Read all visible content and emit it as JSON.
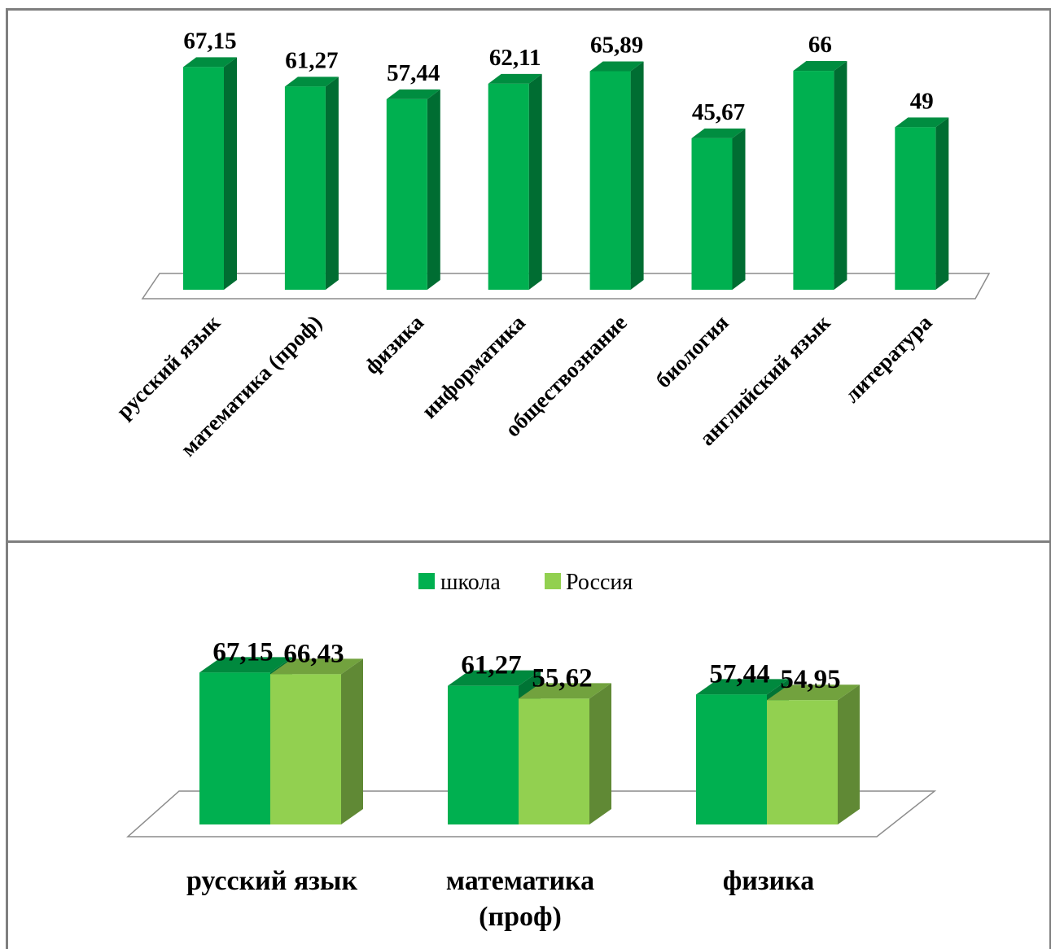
{
  "chart_data": [
    {
      "type": "bar",
      "title": "",
      "categories": [
        "русский язык",
        "математика (проф)",
        "физика",
        "информатика",
        "обществознание",
        "биология",
        "английский язык",
        "литература"
      ],
      "values": [
        67.15,
        61.27,
        57.44,
        62.11,
        65.89,
        45.67,
        66,
        49
      ],
      "value_labels": [
        "67,15",
        "61,27",
        "57,44",
        "62,11",
        "65,89",
        "45,67",
        "66",
        "49"
      ],
      "style": "3d",
      "color": "#00b050",
      "legend": "none"
    },
    {
      "type": "bar",
      "title": "",
      "categories": [
        "русский язык",
        "математика (проф)",
        "физика"
      ],
      "category_lines": [
        [
          "русский язык"
        ],
        [
          "математика",
          "(проф)"
        ],
        [
          "физика"
        ]
      ],
      "series": [
        {
          "name": "школа",
          "values": [
            67.15,
            61.27,
            57.44
          ],
          "value_labels": [
            "67,15",
            "61,27",
            "57,44"
          ],
          "color": "#00b050"
        },
        {
          "name": "Россия",
          "values": [
            66.43,
            55.62,
            54.95
          ],
          "value_labels": [
            "66,43",
            "55,62",
            "54,95"
          ],
          "color": "#92d050"
        }
      ],
      "style": "3d",
      "legend": "top"
    }
  ]
}
